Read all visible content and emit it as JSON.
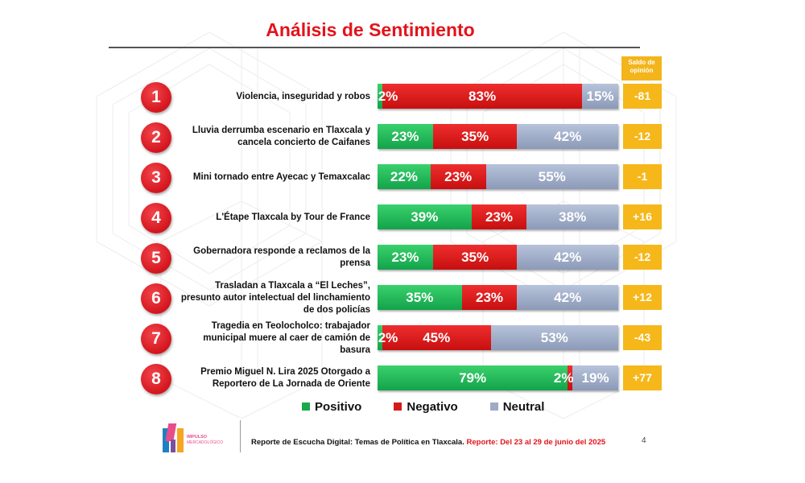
{
  "title": "Análisis de Sentimiento",
  "saldo_header": "Saldo de opinión",
  "colors": {
    "positive": "#18a94d",
    "negative": "#d41a1a",
    "neutral": "#9eaac6",
    "saldo": "#f6b71a",
    "title": "#e3131b"
  },
  "legend": [
    {
      "label": "Positivo",
      "color": "#18a94d"
    },
    {
      "label": "Negativo",
      "color": "#d41a1a"
    },
    {
      "label": "Neutral",
      "color": "#9eaac6"
    }
  ],
  "footer": {
    "text": "Reporte de Escucha Digital: Temas de Política en Tlaxcala. ",
    "highlight": "Reporte: Del 23 al 29 de junio del 2025",
    "page": "4"
  },
  "logo_text": "IMPULSO MERCADOLÓGICO",
  "chart_data": {
    "type": "bar",
    "stacked": true,
    "orientation": "horizontal",
    "title": "Análisis de Sentimiento",
    "categories": [
      "Violencia, inseguridad y robos",
      "Lluvia derrumba escenario en Tlaxcala y cancela concierto de Caifanes",
      "Mini tornado entre Ayecac y Temaxcalac",
      "L'Étape Tlaxcala by Tour de France",
      "Gobernadora responde a reclamos de la prensa",
      "Trasladan a Tlaxcala a “El Leches”, presunto autor intelectual del linchamiento de dos policías",
      "Tragedia en Teolocholco: trabajador municipal muere al caer de camión de basura",
      "Premio Miguel N. Lira 2025 Otorgado a Reportero de La Jornada de Oriente"
    ],
    "numbers": [
      "1",
      "2",
      "3",
      "4",
      "5",
      "6",
      "7",
      "8"
    ],
    "series": [
      {
        "name": "Positivo",
        "values": [
          2,
          23,
          22,
          39,
          23,
          35,
          2,
          79
        ]
      },
      {
        "name": "Negativo",
        "values": [
          83,
          35,
          23,
          23,
          35,
          23,
          45,
          2
        ]
      },
      {
        "name": "Neutral",
        "values": [
          15,
          42,
          55,
          38,
          42,
          42,
          53,
          19
        ]
      }
    ],
    "saldo": [
      "-81",
      "-12",
      "-1",
      "+16",
      "-12",
      "+12",
      "-43",
      "+77"
    ],
    "unit": "%",
    "xlim": [
      0,
      100
    ]
  }
}
